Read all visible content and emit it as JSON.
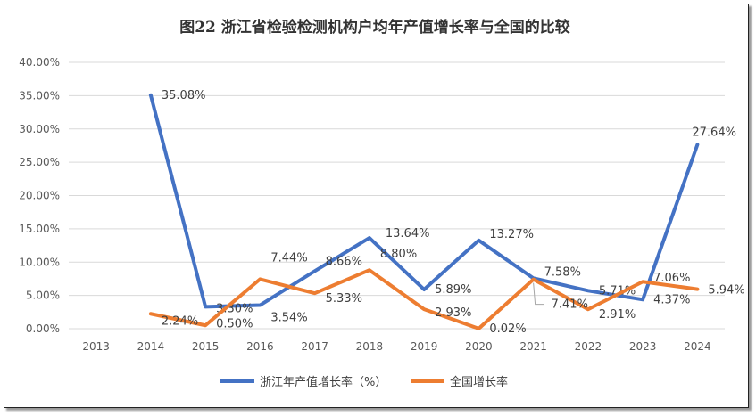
{
  "chart_data": {
    "type": "line",
    "title": "图22  浙江省检验检测机构户均年产值增长率与全国的比较",
    "xlabel": "",
    "ylabel": "",
    "categories": [
      "2013",
      "2014",
      "2015",
      "2016",
      "2017",
      "2018",
      "2019",
      "2020",
      "2021",
      "2022",
      "2023",
      "2024"
    ],
    "ylim": [
      0,
      40
    ],
    "yticks": [
      "0.00%",
      "5.00%",
      "10.00%",
      "15.00%",
      "20.00%",
      "25.00%",
      "30.00%",
      "35.00%",
      "40.00%"
    ],
    "grid": true,
    "legend": "bottom",
    "series": [
      {
        "name": "浙江年产值增长率（%）",
        "color": "#4472C4",
        "values": [
          null,
          35.08,
          3.3,
          3.54,
          8.66,
          13.64,
          5.89,
          13.27,
          7.58,
          5.71,
          4.37,
          27.64
        ],
        "labels": [
          "",
          "35.08%",
          "3.30%",
          "3.54%",
          "8.66%",
          "13.64%",
          "5.89%",
          "13.27%",
          "7.58%",
          "5.71%",
          "4.37%",
          "27.64%"
        ]
      },
      {
        "name": "全国增长率",
        "color": "#ED7D31",
        "values": [
          null,
          2.24,
          0.5,
          7.44,
          5.33,
          8.8,
          2.93,
          0.02,
          7.41,
          2.91,
          7.06,
          5.94
        ],
        "labels": [
          "",
          "2.24%",
          "0.50%",
          "7.44%",
          "5.33%",
          "8.80%",
          "2.93%",
          "0.02%",
          "7.41%",
          "2.91%",
          "7.06%",
          "5.94%"
        ]
      }
    ]
  }
}
